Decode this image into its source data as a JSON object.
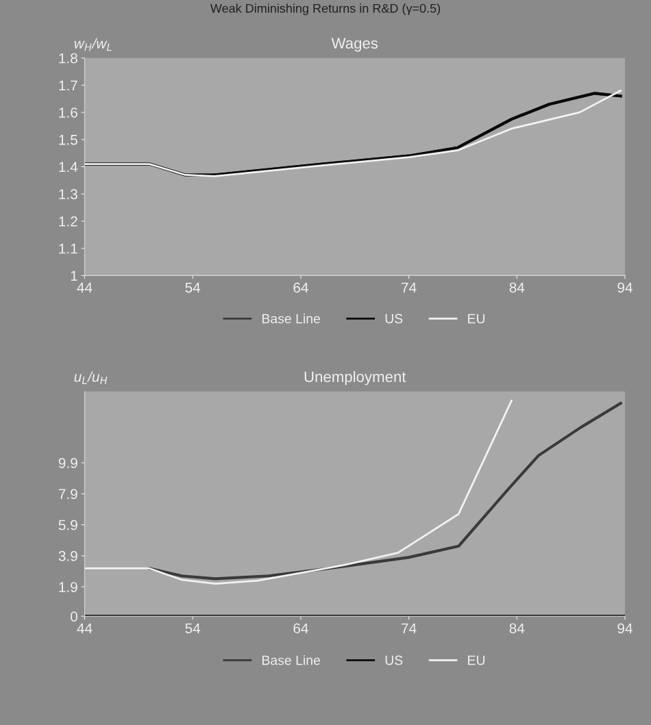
{
  "chart_data": [
    {
      "type": "line",
      "title": "Wages",
      "annotations": [
        "Weak Diminishing Returns in R&D (γ=0.5)"
      ],
      "ylabel": "w$_{H}$/w$_{L}$",
      "xlim": [
        44,
        94
      ],
      "xticks": [
        44,
        54,
        64,
        74,
        84,
        94
      ],
      "ylim": [
        1,
        1.8
      ],
      "yticks": [
        1,
        1.1,
        1.2,
        1.3,
        1.4,
        1.5,
        1.6,
        1.7,
        1.8
      ],
      "grid": false,
      "legend": "bottom",
      "series": [
        {
          "name": "Base Line",
          "color": "#3a3a3a",
          "x": [
            44,
            50,
            53.3,
            56,
            66,
            74,
            78.5,
            83.5,
            87,
            91.2,
            93.6
          ],
          "values": [
            1.41,
            1.41,
            1.37,
            1.37,
            1.41,
            1.44,
            1.47,
            1.575,
            1.63,
            1.67,
            1.66
          ]
        },
        {
          "name": "US",
          "color": "#0a0a0a",
          "x": [
            44,
            50,
            53.3,
            56,
            66,
            74,
            78.5,
            83.5,
            87,
            91.2,
            93.6
          ],
          "values": [
            1.41,
            1.41,
            1.37,
            1.37,
            1.41,
            1.44,
            1.47,
            1.575,
            1.63,
            1.67,
            1.66
          ]
        },
        {
          "name": "EU",
          "color": "#f2f2f2",
          "x": [
            44,
            50,
            53.3,
            56,
            66,
            74,
            78.5,
            83.5,
            89.8,
            93.6
          ],
          "values": [
            1.41,
            1.41,
            1.37,
            1.365,
            1.405,
            1.435,
            1.46,
            1.54,
            1.6,
            1.68
          ]
        }
      ]
    },
    {
      "type": "line",
      "title": "Unemployment",
      "ylabel": "u$_{L}$/u$_{H}$",
      "xlim": [
        44,
        94
      ],
      "xticks": [
        44,
        54,
        64,
        74,
        84,
        94
      ],
      "ylim": [
        0,
        14.5
      ],
      "yticks": [
        0,
        1.9,
        3.9,
        5.9,
        7.9,
        9.9
      ],
      "grid": false,
      "legend": "bottom",
      "series": [
        {
          "name": "Base Line",
          "color": "#3a3a3a",
          "x": [
            50,
            53,
            56.1,
            61,
            66.7,
            74,
            78.6,
            83.2,
            86,
            89.9,
            93.6
          ],
          "values": [
            3.09,
            2.6,
            2.42,
            2.6,
            3.1,
            3.8,
            4.52,
            8.2,
            10.37,
            12.18,
            13.74
          ]
        },
        {
          "name": "US",
          "color": "#0a0a0a",
          "x": [
            44,
            94
          ],
          "values": [
            0,
            0
          ]
        },
        {
          "name": "EU",
          "color": "#f2f2f2",
          "x": [
            44,
            50,
            53,
            56.1,
            60,
            63.9,
            68,
            73,
            78.6,
            83.5
          ],
          "values": [
            3.09,
            3.09,
            2.35,
            2.1,
            2.3,
            2.78,
            3.3,
            4.1,
            6.59,
            13.9
          ]
        }
      ]
    }
  ]
}
